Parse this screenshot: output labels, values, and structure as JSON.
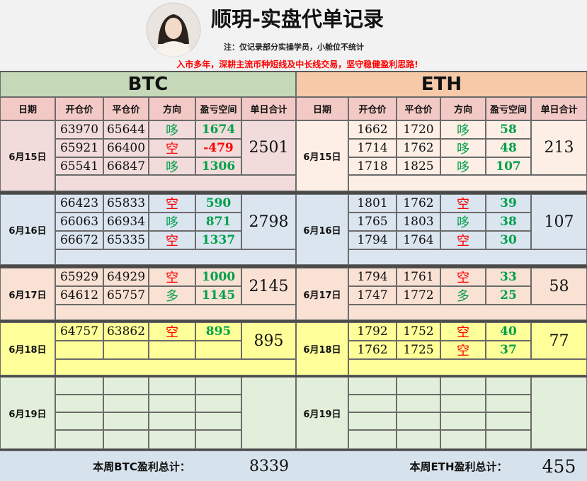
{
  "header": {
    "title": "顺玥-实盘代单记录",
    "note": "注：仅记录部分实操学员，小舱位不统计",
    "slogan": "入市多年，深耕主流币种短线及中长线交易，坚守稳健盈利思路!"
  },
  "direction_colors": {
    "空": "#ff0000",
    "哆": "#00a04a",
    "多": "#00a04a"
  },
  "pnl_colors": {
    "positive": "#00a04a",
    "negative": "#ff0000"
  },
  "sections": [
    {
      "name": "BTC",
      "columns": [
        "日期",
        "开仓价",
        "平仓价",
        "方向",
        "盈亏空间",
        "单日合计"
      ],
      "days": [
        {
          "date": "6月15日",
          "trades": [
            {
              "open": 63970,
              "close": 65644,
              "direction": "哆",
              "pnl": 1674
            },
            {
              "open": 65921,
              "close": 66400,
              "direction": "空",
              "pnl": -479
            },
            {
              "open": 65541,
              "close": 66847,
              "direction": "哆",
              "pnl": 1306
            }
          ],
          "total": 2501
        },
        {
          "date": "6月16日",
          "trades": [
            {
              "open": 66423,
              "close": 65833,
              "direction": "空",
              "pnl": 590
            },
            {
              "open": 66063,
              "close": 66934,
              "direction": "哆",
              "pnl": 871
            },
            {
              "open": 66672,
              "close": 65335,
              "direction": "空",
              "pnl": 1337
            }
          ],
          "total": 2798
        },
        {
          "date": "6月17日",
          "trades": [
            {
              "open": 65929,
              "close": 64929,
              "direction": "空",
              "pnl": 1000
            },
            {
              "open": 64612,
              "close": 65757,
              "direction": "多",
              "pnl": 1145
            }
          ],
          "total": 2145
        },
        {
          "date": "6月18日",
          "trades": [
            {
              "open": 64757,
              "close": 63862,
              "direction": "空",
              "pnl": 895
            }
          ],
          "total": 895
        },
        {
          "date": "6月19日",
          "trades": []
        }
      ],
      "weekly_label": "本周BTC盈利总计：",
      "weekly_total": 8339
    },
    {
      "name": "ETH",
      "columns": [
        "日期",
        "开仓价",
        "平仓价",
        "方向",
        "盈亏空间",
        "单日合计"
      ],
      "days": [
        {
          "date": "6月15日",
          "trades": [
            {
              "open": 1662,
              "close": 1720,
              "direction": "哆",
              "pnl": 58
            },
            {
              "open": 1714,
              "close": 1762,
              "direction": "哆",
              "pnl": 48
            },
            {
              "open": 1718,
              "close": 1825,
              "direction": "哆",
              "pnl": 107
            }
          ],
          "total": 213
        },
        {
          "date": "6月16日",
          "trades": [
            {
              "open": 1801,
              "close": 1762,
              "direction": "空",
              "pnl": 39
            },
            {
              "open": 1765,
              "close": 1803,
              "direction": "哆",
              "pnl": 38
            },
            {
              "open": 1794,
              "close": 1764,
              "direction": "空",
              "pnl": 30
            }
          ],
          "total": 107
        },
        {
          "date": "6月17日",
          "trades": [
            {
              "open": 1794,
              "close": 1761,
              "direction": "空",
              "pnl": 33
            },
            {
              "open": 1747,
              "close": 1772,
              "direction": "多",
              "pnl": 25
            }
          ],
          "total": 58
        },
        {
          "date": "6月18日",
          "trades": [
            {
              "open": 1792,
              "close": 1752,
              "direction": "空",
              "pnl": 40
            },
            {
              "open": 1762,
              "close": 1725,
              "direction": "空",
              "pnl": 37
            }
          ],
          "total": 77
        },
        {
          "date": "6月19日",
          "trades": []
        }
      ],
      "weekly_label": "本周ETH盈利总计：",
      "weekly_total": 455
    }
  ]
}
